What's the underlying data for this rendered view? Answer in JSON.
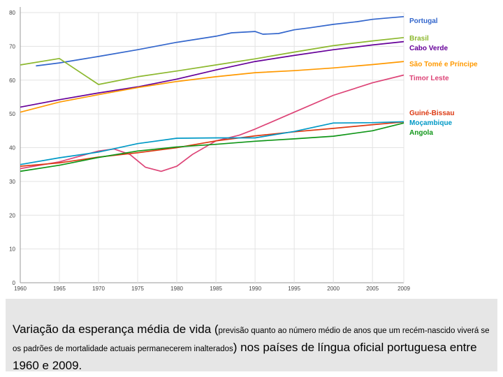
{
  "chart_data": {
    "type": "line",
    "title": "",
    "xlabel": "",
    "ylabel": "",
    "xlim": [
      1960,
      2009
    ],
    "ylim": [
      0,
      80
    ],
    "grid": true,
    "x_ticks": [
      1960,
      1965,
      1970,
      1975,
      1980,
      1985,
      1990,
      1995,
      2000,
      2005,
      2009
    ],
    "y_ticks": [
      0,
      10,
      20,
      30,
      40,
      50,
      60,
      70,
      80
    ],
    "legend_position": "right",
    "series": [
      {
        "name": "Portugal",
        "color": "#3366cc",
        "points": [
          [
            1962,
            64.2
          ],
          [
            1965,
            65.1
          ],
          [
            1970,
            67
          ],
          [
            1975,
            69
          ],
          [
            1980,
            71.2
          ],
          [
            1985,
            73
          ],
          [
            1987,
            74
          ],
          [
            1990,
            74.4
          ],
          [
            1991,
            73.6
          ],
          [
            1993,
            73.8
          ],
          [
            1995,
            74.9
          ],
          [
            1997,
            75.5
          ],
          [
            2000,
            76.5
          ],
          [
            2003,
            77.3
          ],
          [
            2005,
            78
          ],
          [
            2007,
            78.4
          ],
          [
            2009,
            78.8
          ]
        ]
      },
      {
        "name": "Brasil",
        "color": "#8cb82e",
        "points": [
          [
            1960,
            64.5
          ],
          [
            1965,
            66.4
          ],
          [
            1970,
            58.7
          ],
          [
            1975,
            61
          ],
          [
            1980,
            62.7
          ],
          [
            1985,
            64.5
          ],
          [
            1990,
            66.3
          ],
          [
            1995,
            68.3
          ],
          [
            2000,
            70.2
          ],
          [
            2005,
            71.6
          ],
          [
            2009,
            72.6
          ]
        ]
      },
      {
        "name": "Cabo Verde",
        "color": "#660099",
        "points": [
          [
            1960,
            52
          ],
          [
            1965,
            54.2
          ],
          [
            1970,
            56.2
          ],
          [
            1975,
            58
          ],
          [
            1980,
            60.3
          ],
          [
            1985,
            63
          ],
          [
            1990,
            65.5
          ],
          [
            1995,
            67.3
          ],
          [
            2000,
            69
          ],
          [
            2005,
            70.4
          ],
          [
            2009,
            71.4
          ]
        ]
      },
      {
        "name": "São Tomé e Príncipe",
        "color": "#ff9900",
        "points": [
          [
            1960,
            50.5
          ],
          [
            1965,
            53.5
          ],
          [
            1970,
            55.7
          ],
          [
            1975,
            57.8
          ],
          [
            1980,
            59.6
          ],
          [
            1985,
            61
          ],
          [
            1990,
            62.2
          ],
          [
            1995,
            62.8
          ],
          [
            2000,
            63.6
          ],
          [
            2005,
            64.6
          ],
          [
            2009,
            65.5
          ]
        ]
      },
      {
        "name": "Timor Leste",
        "color": "#dd4477",
        "points": [
          [
            1960,
            33.8
          ],
          [
            1965,
            35.8
          ],
          [
            1970,
            39
          ],
          [
            1972,
            39.6
          ],
          [
            1974,
            38
          ],
          [
            1976,
            34.2
          ],
          [
            1978,
            33
          ],
          [
            1980,
            34.5
          ],
          [
            1982,
            38
          ],
          [
            1985,
            42
          ],
          [
            1988,
            43.7
          ],
          [
            1990,
            45.5
          ],
          [
            1995,
            50.5
          ],
          [
            2000,
            55.5
          ],
          [
            2005,
            59.2
          ],
          [
            2009,
            61.5
          ]
        ]
      },
      {
        "name": "Guiné-Bissau",
        "color": "#dc3912",
        "points": [
          [
            1960,
            34.5
          ],
          [
            1965,
            35.5
          ],
          [
            1970,
            37.2
          ],
          [
            1975,
            38.5
          ],
          [
            1980,
            40
          ],
          [
            1985,
            42
          ],
          [
            1990,
            43.5
          ],
          [
            1995,
            44.7
          ],
          [
            2000,
            45.7
          ],
          [
            2005,
            46.8
          ],
          [
            2009,
            47.6
          ]
        ]
      },
      {
        "name": "Moçambique",
        "color": "#0099c6",
        "points": [
          [
            1960,
            35
          ],
          [
            1965,
            37
          ],
          [
            1970,
            38.7
          ],
          [
            1975,
            41.2
          ],
          [
            1980,
            42.8
          ],
          [
            1985,
            42.9
          ],
          [
            1990,
            42.9
          ],
          [
            1995,
            44.8
          ],
          [
            2000,
            47.3
          ],
          [
            2005,
            47.4
          ],
          [
            2009,
            47.7
          ]
        ]
      },
      {
        "name": "Angola",
        "color": "#109618",
        "points": [
          [
            1960,
            33
          ],
          [
            1965,
            34.8
          ],
          [
            1970,
            37.1
          ],
          [
            1975,
            39
          ],
          [
            1980,
            40.2
          ],
          [
            1985,
            41
          ],
          [
            1990,
            41.9
          ],
          [
            1995,
            42.6
          ],
          [
            2000,
            43.4
          ],
          [
            2005,
            45
          ],
          [
            2009,
            47.3
          ]
        ]
      }
    ]
  },
  "caption": {
    "main_start": "Variação da esperança média de vida (",
    "note": "previsão quanto ao número médio de anos que um recém-nascido viverá se os padrões de mortalidade actuais permanecerem inalterados",
    "main_end": ") nos países de língua oficial portuguesa entre 1960 e 2009."
  }
}
